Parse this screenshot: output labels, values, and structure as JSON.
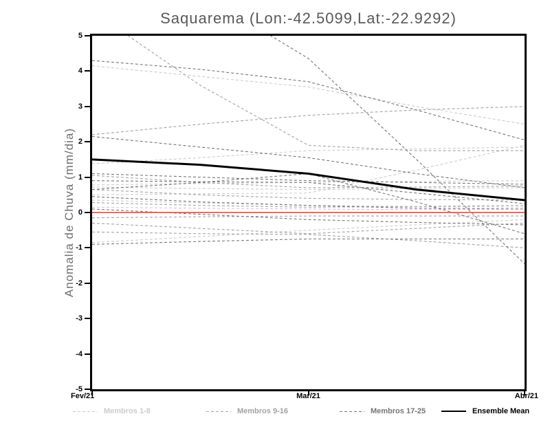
{
  "chart_data": {
    "type": "line",
    "title": "Saquarema (Lon:-42.5099,Lat:-22.9292)",
    "ylabel": "Anomalia de Chuva (mm/dia)",
    "xlabel": "",
    "x_labels": [
      "Fev/21",
      "Mar/21",
      "Abr/21"
    ],
    "x_tick_stations": [
      0,
      0.5,
      1
    ],
    "ylim": [
      -5,
      5
    ],
    "yticks": [
      5,
      4,
      3,
      2,
      1,
      0,
      -1,
      -2,
      -3,
      -4,
      -5
    ],
    "grid": "off",
    "legend_position": "bottom",
    "zero_line_color": "#f25048",
    "axis_color": "#000000",
    "x_stations": [
      0,
      0.25,
      0.5,
      0.75,
      1
    ],
    "groups": [
      {
        "name": "Membros 1-8",
        "color": "#cbcbcb",
        "style": "dashed"
      },
      {
        "name": "Membros 9-16",
        "color": "#a2a2a2",
        "style": "dashed"
      },
      {
        "name": "Membros 17-25",
        "color": "#757575",
        "style": "dashed"
      },
      {
        "name": "Ensemble Mean",
        "color": "#000000",
        "style": "solid"
      }
    ],
    "members": [
      {
        "group": 0,
        "values": [
          4.15,
          3.85,
          3.55,
          3.0,
          2.5
        ]
      },
      {
        "group": 0,
        "values": [
          1.38,
          1.55,
          1.75,
          1.8,
          1.85
        ]
      },
      {
        "group": 0,
        "values": [
          0.78,
          0.82,
          0.85,
          0.88,
          0.9
        ]
      },
      {
        "group": 0,
        "values": [
          0.72,
          0.68,
          0.65,
          0.68,
          0.7
        ]
      },
      {
        "group": 0,
        "values": [
          0.5,
          0.53,
          0.55,
          1.2,
          1.9
        ]
      },
      {
        "group": 0,
        "values": [
          0.35,
          0.27,
          0.2,
          0.17,
          0.15
        ]
      },
      {
        "group": 0,
        "values": [
          0.15,
          0.12,
          0.1,
          0.08,
          0.1
        ]
      },
      {
        "group": 0,
        "values": [
          -0.85,
          -0.68,
          -0.5,
          -0.35,
          -0.2
        ]
      },
      {
        "group": 1,
        "values": [
          2.2,
          2.5,
          2.75,
          2.9,
          3.0
        ]
      },
      {
        "group": 1,
        "values": [
          5.7,
          3.6,
          1.9,
          1.75,
          1.75
        ]
      },
      {
        "group": 1,
        "values": [
          1.05,
          0.85,
          0.7,
          0.72,
          0.75
        ]
      },
      {
        "group": 1,
        "values": [
          0.65,
          0.5,
          0.4,
          0.37,
          0.35
        ]
      },
      {
        "group": 1,
        "values": [
          0.28,
          0.2,
          0.15,
          0.17,
          0.2
        ]
      },
      {
        "group": 1,
        "values": [
          -0.15,
          -0.12,
          -0.1,
          -0.1,
          -0.1
        ]
      },
      {
        "group": 1,
        "values": [
          -0.3,
          -0.45,
          -0.6,
          -0.45,
          -0.3
        ]
      },
      {
        "group": 1,
        "values": [
          -0.55,
          -0.6,
          -0.62,
          -0.8,
          -1.0
        ]
      },
      {
        "group": 2,
        "values": [
          4.3,
          4.05,
          3.7,
          2.9,
          2.05
        ]
      },
      {
        "group": 2,
        "values": [
          2.15,
          1.85,
          1.55,
          1.1,
          0.7
        ]
      },
      {
        "group": 2,
        "values": [
          1.1,
          1.0,
          0.9,
          0.85,
          0.8
        ]
      },
      {
        "group": 2,
        "values": [
          0.9,
          0.87,
          0.85,
          0.55,
          0.25
        ]
      },
      {
        "group": 2,
        "values": [
          0.1,
          -0.05,
          -0.2,
          -0.28,
          -0.35
        ]
      },
      {
        "group": 2,
        "values": [
          -0.9,
          -0.82,
          -0.75,
          -0.75,
          -0.75
        ]
      },
      {
        "group": 2,
        "values": [
          8.0,
          6.2,
          4.36,
          1.5,
          -1.45
        ]
      },
      {
        "group": 2,
        "values": [
          0.65,
          0.85,
          1.1,
          0.3,
          -0.6
        ]
      },
      {
        "group": 2,
        "values": [
          0.45,
          0.3,
          0.2,
          0.12,
          0.1
        ]
      }
    ],
    "ensemble_mean": [
      1.5,
      1.35,
      1.1,
      0.65,
      0.35
    ]
  }
}
